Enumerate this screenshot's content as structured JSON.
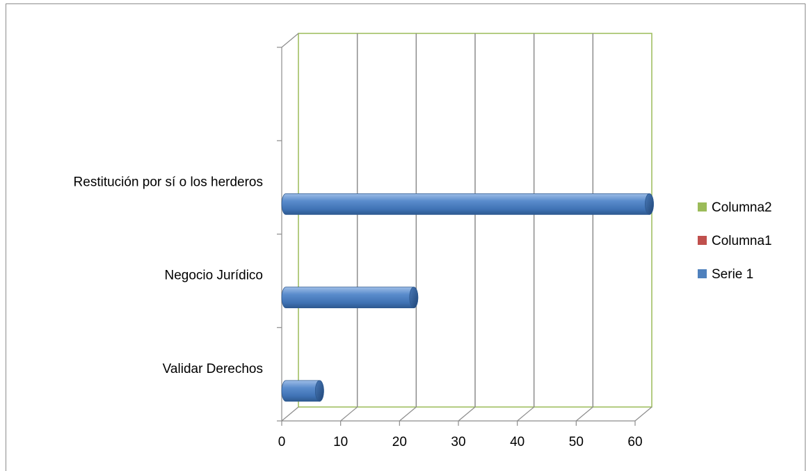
{
  "chart_data": {
    "type": "bar",
    "orientation": "horizontal",
    "style": "3d-cylinder",
    "categories": [
      "Validar Derechos",
      "Negocio Jurídico",
      "Restitución por sí o los herderos",
      ""
    ],
    "series": [
      {
        "name": "Serie 1",
        "values": [
          5,
          21,
          61,
          null
        ],
        "color": "#4f81bd"
      },
      {
        "name": "Columna1",
        "values": [
          null,
          null,
          null,
          null
        ],
        "color": "#c0504d"
      },
      {
        "name": "Columna2",
        "values": [
          null,
          null,
          null,
          null
        ],
        "color": "#9bbb59"
      }
    ],
    "xlim": [
      0,
      60
    ],
    "x_ticks": [
      "0",
      "10",
      "20",
      "30",
      "40",
      "50",
      "60"
    ],
    "grid": true,
    "legend_position": "right",
    "legend_order": [
      "Columna2",
      "Columna1",
      "Serie 1"
    ],
    "colors": {
      "gridline": "#8c8c8c",
      "back_wall_border": "#9bbb59",
      "axis": "#8c8c8c"
    }
  }
}
